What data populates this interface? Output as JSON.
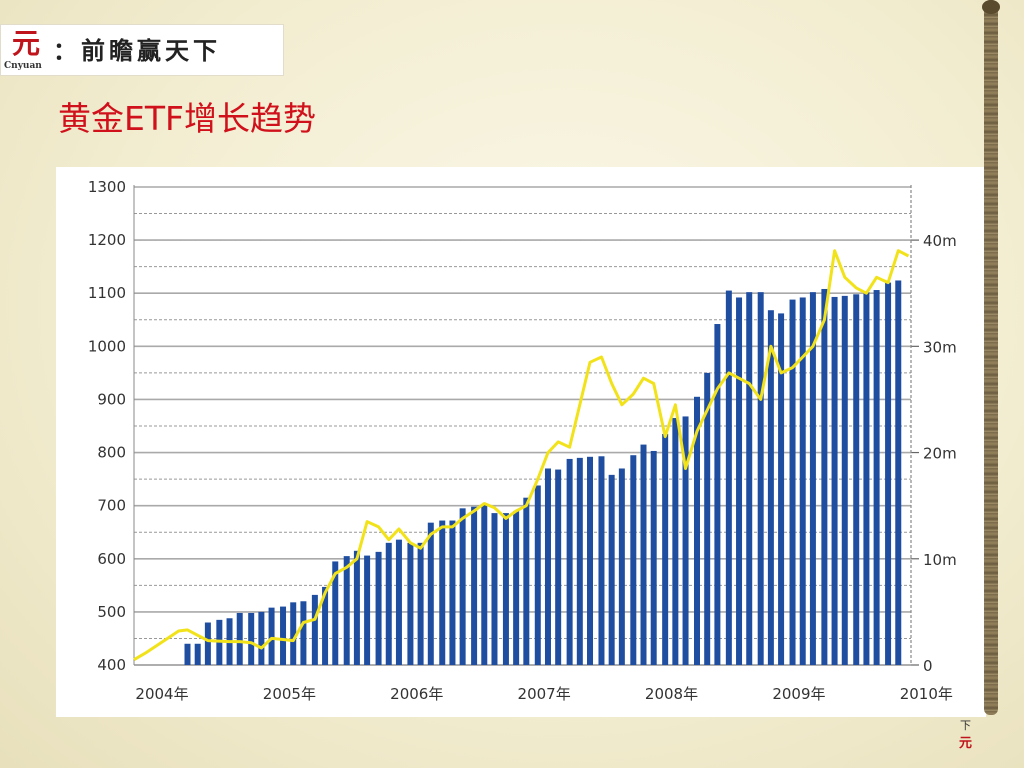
{
  "header": {
    "logo_mark": "元",
    "logo_sub": "Cnyuan",
    "slogan": "：前瞻赢天下"
  },
  "title": "黄金ETF增长趋势",
  "nav": {
    "next_label": "下",
    "logo_small": "元"
  },
  "colors": {
    "bars": "#1f4ea1",
    "line": "#f2e21a",
    "title": "#d0101a"
  },
  "chart_data": {
    "type": "bar",
    "title": "",
    "xlabel": "",
    "ylabel": "",
    "ylim": [
      400,
      1300
    ],
    "y2lim": [
      0,
      45
    ],
    "y_ticks": [
      "1300",
      "1200",
      "1100",
      "1000",
      "900",
      "800",
      "700",
      "600",
      "500",
      "400"
    ],
    "y2_ticks": [
      "40m",
      "30m",
      "20m",
      "10m",
      "0"
    ],
    "x_tick_labels": [
      "2004年",
      "2005年",
      "2006年",
      "2007年",
      "2008年",
      "2009年",
      "2010年"
    ],
    "x_range": [
      2004.0,
      2010.1
    ],
    "grid": true,
    "series": [
      {
        "axis": "left",
        "kind": "bar",
        "x": [
          2004.42,
          2004.5,
          2004.58,
          2004.67,
          2004.75,
          2004.83,
          2004.92,
          2005.0,
          2005.08,
          2005.17,
          2005.25,
          2005.33,
          2005.42,
          2005.5,
          2005.58,
          2005.67,
          2005.75,
          2005.83,
          2005.92,
          2006.0,
          2006.08,
          2006.17,
          2006.25,
          2006.33,
          2006.42,
          2006.5,
          2006.58,
          2006.67,
          2006.75,
          2006.83,
          2006.92,
          2007.0,
          2007.08,
          2007.17,
          2007.25,
          2007.33,
          2007.42,
          2007.5,
          2007.58,
          2007.67,
          2007.75,
          2007.83,
          2007.92,
          2008.0,
          2008.08,
          2008.17,
          2008.25,
          2008.33,
          2008.42,
          2008.5,
          2008.58,
          2008.67,
          2008.75,
          2008.83,
          2008.92,
          2009.0,
          2009.08,
          2009.17,
          2009.25,
          2009.33,
          2009.42,
          2009.5,
          2009.58,
          2009.67,
          2009.75,
          2009.83,
          2009.92,
          2010.0
        ],
        "values": [
          440,
          440,
          480,
          485,
          488,
          498,
          498,
          500,
          508,
          510,
          518,
          520,
          532,
          547,
          595,
          605,
          615,
          606,
          613,
          630,
          636,
          630,
          630,
          668,
          672,
          672,
          695,
          698,
          702,
          686,
          686,
          690,
          715,
          738,
          770,
          768,
          788,
          790,
          792,
          793,
          758,
          770,
          795,
          815,
          803,
          835,
          865,
          868,
          905,
          950,
          1042,
          1105,
          1092,
          1102,
          1102,
          1068,
          1062,
          1088,
          1092,
          1102,
          1108,
          1093,
          1095,
          1098,
          1102,
          1106,
          1120,
          1124
        ]
      },
      {
        "axis": "right",
        "kind": "line",
        "x": [
          2004.0,
          2004.1,
          2004.2,
          2004.35,
          2004.42,
          2004.5,
          2004.58,
          2004.75,
          2004.83,
          2004.92,
          2005.0,
          2005.08,
          2005.17,
          2005.25,
          2005.33,
          2005.42,
          2005.5,
          2005.58,
          2005.67,
          2005.75,
          2005.83,
          2005.92,
          2006.0,
          2006.08,
          2006.17,
          2006.25,
          2006.33,
          2006.42,
          2006.5,
          2006.58,
          2006.67,
          2006.75,
          2006.83,
          2006.92,
          2007.0,
          2007.08,
          2007.17,
          2007.25,
          2007.33,
          2007.42,
          2007.5,
          2007.58,
          2007.67,
          2007.75,
          2007.83,
          2007.92,
          2008.0,
          2008.08,
          2008.17,
          2008.25,
          2008.33,
          2008.42,
          2008.5,
          2008.58,
          2008.67,
          2008.75,
          2008.83,
          2008.92,
          2009.0,
          2009.08,
          2009.17,
          2009.25,
          2009.33,
          2009.42,
          2009.5,
          2009.58,
          2009.67,
          2009.75,
          2009.83,
          2009.92,
          2010.0,
          2010.08
        ],
        "values": [
          0.5,
          1.2,
          2.0,
          3.2,
          3.3,
          2.8,
          2.3,
          2.2,
          2.2,
          2.1,
          1.6,
          2.5,
          2.4,
          2.3,
          4.0,
          4.3,
          6.8,
          8.6,
          9.2,
          10.0,
          13.5,
          13.0,
          11.8,
          12.8,
          11.5,
          11.0,
          12.3,
          13.0,
          13.0,
          13.8,
          14.5,
          15.2,
          14.8,
          13.8,
          14.5,
          15.0,
          17.5,
          20.0,
          21.0,
          20.5,
          24.5,
          28.5,
          29.0,
          26.5,
          24.5,
          25.5,
          27.0,
          26.5,
          21.5,
          24.5,
          18.5,
          22.0,
          24.0,
          26.0,
          27.5,
          27.0,
          26.5,
          25.0,
          30.0,
          27.5,
          28.0,
          29.0,
          30.0,
          32.5,
          39.0,
          36.5,
          35.5,
          35.0,
          36.5,
          36.0,
          39.0,
          38.5
        ]
      }
    ]
  }
}
